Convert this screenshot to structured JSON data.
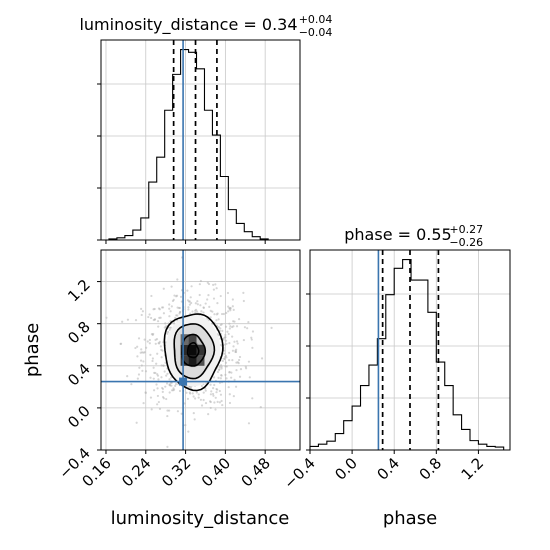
{
  "chart_data": {
    "type": "corner",
    "truth": {
      "luminosity_distance": 0.315,
      "phase": 0.25
    },
    "panels": [
      {
        "id": "hist-luminosity-distance",
        "type": "histogram",
        "variable": "luminosity_distance",
        "title": {
          "prefix": "luminosity_distance = 0.34",
          "upper": "+0.04",
          "lower": "−0.04"
        },
        "xlim": [
          0.15,
          0.55
        ],
        "bin_edges": [
          0.15,
          0.166,
          0.182,
          0.198,
          0.214,
          0.23,
          0.246,
          0.262,
          0.278,
          0.294,
          0.31,
          0.326,
          0.342,
          0.358,
          0.374,
          0.39,
          0.406,
          0.422,
          0.438,
          0.454,
          0.47,
          0.486
        ],
        "counts": [
          0,
          2,
          4,
          8,
          18,
          40,
          105,
          150,
          235,
          300,
          345,
          340,
          310,
          235,
          190,
          115,
          55,
          30,
          15,
          6,
          2
        ],
        "quantiles": [
          0.296,
          0.34,
          0.383
        ]
      },
      {
        "id": "hist-phase",
        "type": "histogram",
        "variable": "phase",
        "title": {
          "prefix": "phase = 0.55",
          "upper": "+0.27",
          "lower": "−0.26"
        },
        "xlim": [
          -0.4,
          1.5
        ],
        "bin_edges": [
          -0.4,
          -0.32,
          -0.24,
          -0.16,
          -0.08,
          0.0,
          0.08,
          0.16,
          0.24,
          0.32,
          0.4,
          0.48,
          0.56,
          0.64,
          0.72,
          0.8,
          0.88,
          0.96,
          1.04,
          1.12,
          1.2,
          1.28,
          1.36,
          1.44
        ],
        "counts": [
          6,
          10,
          15,
          28,
          50,
          75,
          110,
          145,
          190,
          265,
          310,
          325,
          290,
          290,
          235,
          150,
          110,
          60,
          35,
          16,
          10,
          6,
          5
        ],
        "quantiles": [
          0.29,
          0.55,
          0.82
        ]
      },
      {
        "id": "joint-luminosity-distance-phase",
        "type": "hist2d-contour",
        "x": "luminosity_distance",
        "y": "phase",
        "xlim": [
          0.15,
          0.55
        ],
        "ylim": [
          -0.4,
          1.5
        ],
        "center": [
          0.335,
          0.545
        ],
        "contour_sigmas": [
          [
            0.011,
            0.07
          ],
          [
            0.023,
            0.15
          ],
          [
            0.04,
            0.26
          ],
          [
            0.058,
            0.36
          ]
        ]
      }
    ],
    "x_ticks": {
      "luminosity_distance": [
        "0.16",
        "0.24",
        "0.32",
        "0.40",
        "0.48"
      ],
      "phase": [
        "−0.4",
        "0.0",
        "0.4",
        "0.8",
        "1.2"
      ]
    },
    "y_ticks": {
      "phase": [
        "−0.4",
        "0.0",
        "0.4",
        "0.8",
        "1.2"
      ]
    },
    "xlabels": [
      "luminosity_distance",
      "phase"
    ],
    "ylabels": [
      "phase"
    ],
    "grid": true,
    "colors": {
      "truth": "#3a75af",
      "histogram": "#000000",
      "grid": "#c8c8c8",
      "scatter": "#b4b4b4"
    }
  }
}
